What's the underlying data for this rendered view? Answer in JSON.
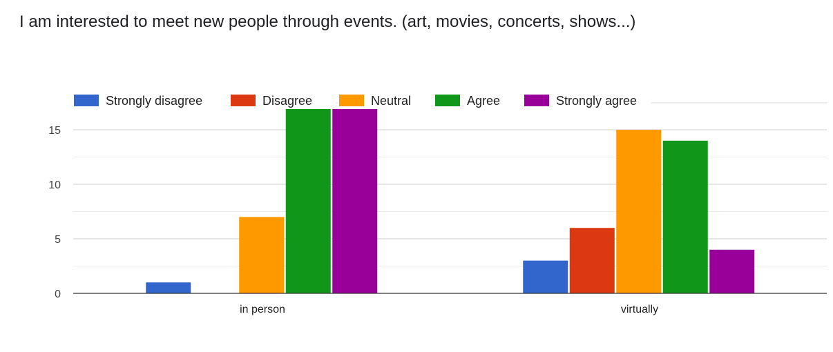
{
  "title": "I am interested to meet new people through events. (art, movies, concerts, shows...)",
  "chart_data": {
    "type": "bar",
    "categories": [
      "in person",
      "virtually"
    ],
    "series": [
      {
        "name": "Strongly disagree",
        "color": "#3366cc",
        "values": [
          1,
          3
        ]
      },
      {
        "name": "Disagree",
        "color": "#dc3912",
        "values": [
          0,
          6
        ]
      },
      {
        "name": "Neutral",
        "color": "#ff9900",
        "values": [
          7,
          15
        ]
      },
      {
        "name": "Agree",
        "color": "#109618",
        "values": [
          17,
          14
        ]
      },
      {
        "name": "Strongly agree",
        "color": "#990099",
        "values": [
          17,
          4
        ]
      }
    ],
    "yticks": [
      0,
      5,
      10,
      15
    ],
    "ylim": [
      0,
      17
    ],
    "grid": true,
    "legend": "top"
  }
}
